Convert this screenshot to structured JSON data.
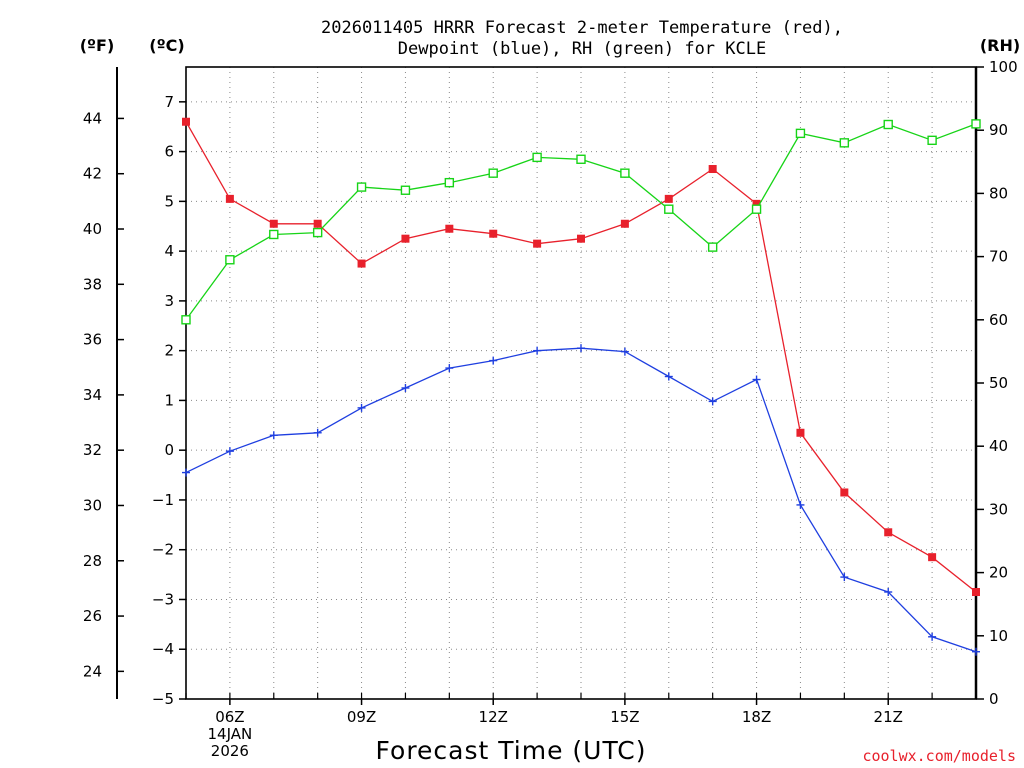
{
  "title_line1": "2026011405 HRRR Forecast 2-meter Temperature (red),",
  "title_line2": "Dewpoint (blue), RH (green) for KCLE",
  "units": {
    "f": "(ºF)",
    "c": "(ºC)",
    "rh": "(RH)"
  },
  "credit": "coolwx.com/models",
  "colors": {
    "temperature": "#e8212c",
    "dewpoint": "#1f3fe0",
    "rh": "#17d417"
  },
  "chart_data": {
    "type": "line",
    "title": "2026011405 HRRR Forecast 2-meter Temperature (red), Dewpoint (blue), RH (green) for KCLE",
    "xlabel": "Forecast Time (UTC)",
    "x_hours": [
      5,
      6,
      7,
      8,
      9,
      10,
      11,
      12,
      13,
      14,
      15,
      16,
      17,
      18,
      19,
      20,
      21,
      22,
      23
    ],
    "xlim": [
      5,
      23
    ],
    "x_ticks": [
      {
        "hour": 6,
        "lines": [
          "06Z",
          "14JAN",
          "2026"
        ]
      },
      {
        "hour": 9,
        "lines": [
          "09Z"
        ]
      },
      {
        "hour": 12,
        "lines": [
          "12Z"
        ]
      },
      {
        "hour": 15,
        "lines": [
          "15Z"
        ]
      },
      {
        "hour": 18,
        "lines": [
          "18Z"
        ]
      },
      {
        "hour": 21,
        "lines": [
          "21Z"
        ]
      }
    ],
    "ylim_c": [
      -5,
      7.7
    ],
    "y_ticks_c": [
      "-5",
      "-4",
      "-3",
      "-2",
      "-1",
      "0",
      "1",
      "2",
      "3",
      "4",
      "5",
      "6",
      "7"
    ],
    "y_ticks_f": [
      "24",
      "26",
      "28",
      "30",
      "32",
      "34",
      "36",
      "38",
      "40",
      "42",
      "44"
    ],
    "ylim_rh": [
      0,
      100
    ],
    "y_ticks_rh": [
      "0",
      "10",
      "20",
      "30",
      "40",
      "50",
      "60",
      "70",
      "80",
      "90",
      "100"
    ],
    "series": [
      {
        "name": "Temperature",
        "axis": "c",
        "marker": "filled-square",
        "values": [
          6.6,
          5.05,
          4.55,
          4.55,
          3.75,
          4.25,
          4.45,
          4.35,
          4.15,
          4.25,
          4.55,
          5.05,
          5.65,
          4.95,
          0.35,
          -0.85,
          -1.65,
          -2.15,
          -2.85
        ]
      },
      {
        "name": "Dewpoint",
        "axis": "c",
        "marker": "plus",
        "values": [
          -0.45,
          -0.02,
          0.3,
          0.35,
          0.85,
          1.25,
          1.65,
          1.8,
          2.0,
          2.05,
          1.98,
          1.48,
          0.98,
          1.42,
          -1.1,
          -2.55,
          -2.85,
          -3.75,
          -4.05
        ]
      },
      {
        "name": "RH",
        "axis": "rh",
        "marker": "open-square",
        "values": [
          60,
          69.5,
          73.5,
          73.8,
          81,
          80.5,
          81.7,
          83.2,
          85.7,
          85.4,
          83.2,
          77.5,
          71.5,
          77.5,
          89.5,
          88,
          90.9,
          88.4,
          91
        ]
      }
    ]
  }
}
